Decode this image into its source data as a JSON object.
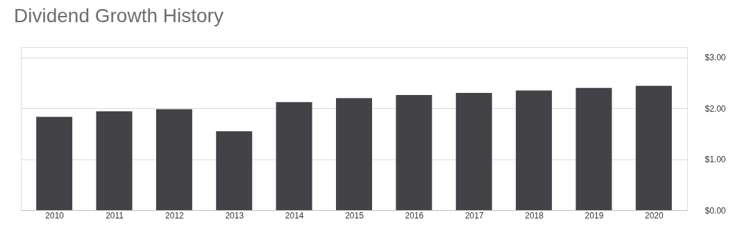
{
  "chart_data": {
    "type": "bar",
    "title": "Dividend Growth History",
    "categories": [
      "2010",
      "2011",
      "2012",
      "2013",
      "2014",
      "2015",
      "2016",
      "2017",
      "2018",
      "2019",
      "2020"
    ],
    "values": [
      1.83,
      1.94,
      1.98,
      1.55,
      2.12,
      2.2,
      2.26,
      2.3,
      2.35,
      2.4,
      2.44
    ],
    "color": "#434247",
    "ylim": [
      0,
      3.2
    ],
    "yticks": [
      {
        "value": 0,
        "label": "$0.00"
      },
      {
        "value": 1,
        "label": "$1.00"
      },
      {
        "value": 2,
        "label": "$2.00"
      },
      {
        "value": 3,
        "label": "$3.00"
      }
    ],
    "grid": "y"
  }
}
